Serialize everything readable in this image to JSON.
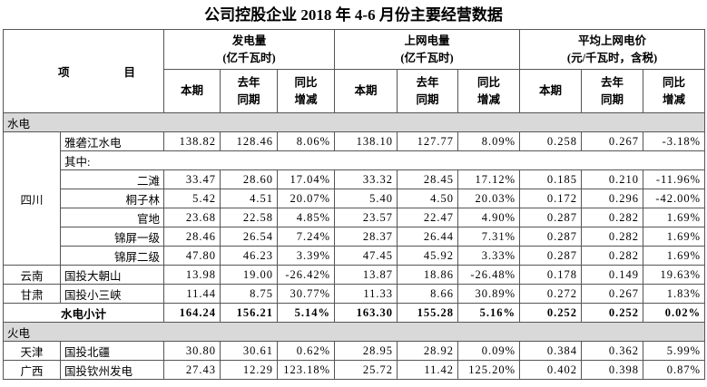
{
  "title": "公司控股企业 2018 年 4-6 月份主要经营数据",
  "header": {
    "item": "项目",
    "groups": [
      {
        "title": "发电量",
        "unit": "(亿千瓦时)",
        "columns": [
          "本期",
          "去年同期",
          "同比增减"
        ]
      },
      {
        "title": "上网电量",
        "unit": "(亿千瓦时)",
        "columns": [
          "本期",
          "去年同期",
          "同比增减"
        ]
      },
      {
        "title": "平均上网电价",
        "unit": "(元/千瓦时，含税)",
        "columns": [
          "本期",
          "去年同期",
          "同比增减"
        ]
      }
    ]
  },
  "sections": [
    {
      "title": "水电",
      "regions": [
        {
          "region": "四川",
          "rows": [
            {
              "name": "雅砻江水电",
              "values": [
                "138.82",
                "128.46",
                "8.06%",
                "138.10",
                "127.77",
                "8.09%",
                "0.258",
                "0.267",
                "-3.18%"
              ]
            },
            {
              "name": "其中:",
              "children": [
                {
                  "name": "二滩",
                  "values": [
                    "33.47",
                    "28.60",
                    "17.04%",
                    "33.32",
                    "28.45",
                    "17.12%",
                    "0.185",
                    "0.210",
                    "-11.96%"
                  ]
                },
                {
                  "name": "桐子林",
                  "values": [
                    "5.42",
                    "4.51",
                    "20.07%",
                    "5.40",
                    "4.50",
                    "20.03%",
                    "0.172",
                    "0.296",
                    "-42.00%"
                  ]
                },
                {
                  "name": "官地",
                  "values": [
                    "23.68",
                    "22.58",
                    "4.85%",
                    "23.57",
                    "22.47",
                    "4.90%",
                    "0.287",
                    "0.282",
                    "1.69%"
                  ]
                },
                {
                  "name": "锦屏一级",
                  "values": [
                    "28.46",
                    "26.54",
                    "7.24%",
                    "28.37",
                    "26.44",
                    "7.31%",
                    "0.287",
                    "0.282",
                    "1.69%"
                  ]
                },
                {
                  "name": "锦屏二级",
                  "values": [
                    "47.80",
                    "46.23",
                    "3.39%",
                    "47.45",
                    "45.92",
                    "3.33%",
                    "0.287",
                    "0.282",
                    "1.69%"
                  ]
                }
              ]
            }
          ]
        },
        {
          "region": "云南",
          "rows": [
            {
              "name": "国投大朝山",
              "values": [
                "13.98",
                "19.00",
                "-26.42%",
                "13.87",
                "18.86",
                "-26.48%",
                "0.178",
                "0.149",
                "19.63%"
              ]
            }
          ]
        },
        {
          "region": "甘肃",
          "rows": [
            {
              "name": "国投小三峡",
              "values": [
                "11.44",
                "8.75",
                "30.77%",
                "11.33",
                "8.66",
                "30.89%",
                "0.272",
                "0.267",
                "1.83%"
              ]
            }
          ]
        }
      ],
      "subtotal": {
        "name": "水电小计",
        "values": [
          "164.24",
          "156.21",
          "5.14%",
          "163.30",
          "155.28",
          "5.16%",
          "0.252",
          "0.252",
          "0.02%"
        ]
      }
    },
    {
      "title": "火电",
      "regions": [
        {
          "region": "天津",
          "rows": [
            {
              "name": "国投北疆",
              "values": [
                "30.80",
                "30.61",
                "0.62%",
                "28.95",
                "28.92",
                "0.09%",
                "0.384",
                "0.362",
                "5.99%"
              ]
            }
          ]
        },
        {
          "region": "广西",
          "rows": [
            {
              "name": "国投钦州发电",
              "values": [
                "27.43",
                "12.29",
                "123.18%",
                "25.72",
                "11.42",
                "125.20%",
                "0.402",
                "0.398",
                "0.87%"
              ]
            }
          ]
        }
      ]
    }
  ]
}
